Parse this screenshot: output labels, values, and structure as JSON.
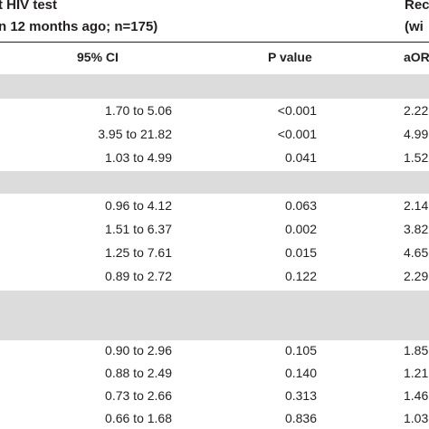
{
  "header": {
    "left_line1": "t HIV test",
    "left_line2": "n 12 months ago; n=175)",
    "right_line1": "Rec",
    "right_line2": "(wi"
  },
  "columns": {
    "ci": "95% CI",
    "p": "P value",
    "aor": "aOR"
  },
  "rows": [
    {
      "ci": "1.70 to 5.06",
      "p": "<0.001",
      "aor": "2.22"
    },
    {
      "ci": "3.95 to 21.82",
      "p": "<0.001",
      "aor": "4.99"
    },
    {
      "ci": "1.03 to 4.99",
      "p": "0.041",
      "aor": "1.52"
    },
    {
      "ci": "0.96 to 4.12",
      "p": "0.063",
      "aor": "2.14"
    },
    {
      "ci": "1.51 to 6.37",
      "p": "0.002",
      "aor": "3.82"
    },
    {
      "ci": "1.25 to 7.61",
      "p": "0.015",
      "aor": "4.65"
    },
    {
      "ci": "0.89 to 2.72",
      "p": "0.122",
      "aor": "2.29"
    },
    {
      "ci": "0.90 to 2.96",
      "p": "0.105",
      "aor": "1.85"
    },
    {
      "ci": "0.88 to 2.49",
      "p": "0.140",
      "aor": "1.21"
    },
    {
      "ci": "0.73 to 2.66",
      "p": "0.313",
      "aor": "1.46"
    },
    {
      "ci": "0.66 to 1.68",
      "p": "0.836",
      "aor": "1.03"
    }
  ]
}
